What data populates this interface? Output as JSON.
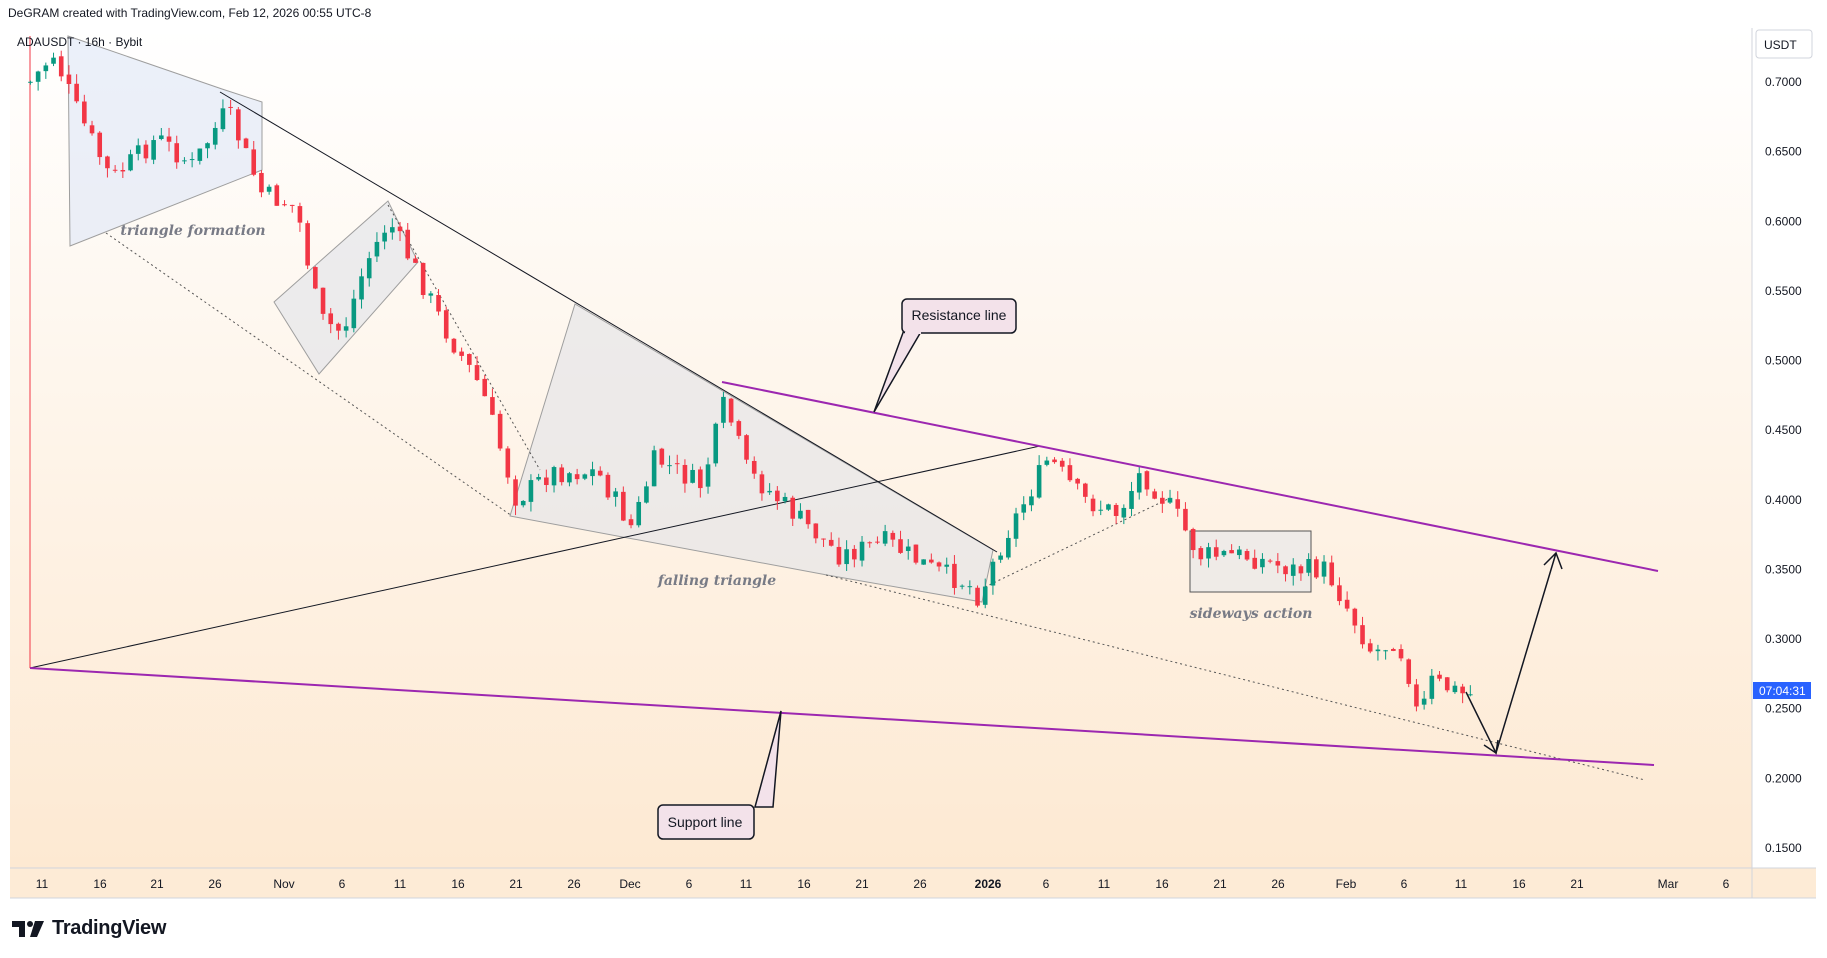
{
  "header": {
    "credit": "DeGRAM created with TradingView.com, Feb 12, 2026 00:55 UTC-8"
  },
  "symbol": {
    "label": "ADAUSDT · 16h · Bybit"
  },
  "price_axis": {
    "currency": "USDT",
    "countdown": "07:04:31",
    "ticks": [
      "0.7000",
      "0.6500",
      "0.6000",
      "0.5500",
      "0.5000",
      "0.4500",
      "0.4000",
      "0.3500",
      "0.3000",
      "0.2500",
      "0.2000",
      "0.1500"
    ]
  },
  "time_axis": {
    "ticks": [
      {
        "label": "11",
        "bold": false
      },
      {
        "label": "16",
        "bold": false
      },
      {
        "label": "21",
        "bold": false
      },
      {
        "label": "26",
        "bold": false
      },
      {
        "label": "Nov",
        "bold": false
      },
      {
        "label": "6",
        "bold": false
      },
      {
        "label": "11",
        "bold": false
      },
      {
        "label": "16",
        "bold": false
      },
      {
        "label": "21",
        "bold": false
      },
      {
        "label": "26",
        "bold": false
      },
      {
        "label": "Dec",
        "bold": false
      },
      {
        "label": "6",
        "bold": false
      },
      {
        "label": "11",
        "bold": false
      },
      {
        "label": "16",
        "bold": false
      },
      {
        "label": "21",
        "bold": false
      },
      {
        "label": "26",
        "bold": false
      },
      {
        "label": "2026",
        "bold": true
      },
      {
        "label": "6",
        "bold": false
      },
      {
        "label": "11",
        "bold": false
      },
      {
        "label": "16",
        "bold": false
      },
      {
        "label": "21",
        "bold": false
      },
      {
        "label": "26",
        "bold": false
      },
      {
        "label": "Feb",
        "bold": false
      },
      {
        "label": "6",
        "bold": false
      },
      {
        "label": "11",
        "bold": false
      },
      {
        "label": "16",
        "bold": false
      },
      {
        "label": "21",
        "bold": false
      },
      {
        "label": "Mar",
        "bold": false
      },
      {
        "label": "6",
        "bold": false
      }
    ]
  },
  "annotations": {
    "resistance": "Resistance line",
    "support": "Support line",
    "triangle_formation": "triangle formation",
    "falling_triangle": "falling triangle",
    "sideways": "sideways action"
  },
  "colors": {
    "up": "#089981",
    "down": "#f23645",
    "trendline": "#9c27b0",
    "drawing": "#131722",
    "countdown_bg": "#2962ff"
  },
  "logo": {
    "text": "TradingView"
  },
  "chart_data": {
    "type": "candlestick",
    "symbol": "ADAUSDT",
    "timeframe": "16h",
    "exchange": "Bybit",
    "ylim": [
      0.12,
      0.76
    ],
    "close_path": [
      {
        "date": "Oct 10",
        "price": 0.7
      },
      {
        "date": "Oct 12",
        "price": 0.72
      },
      {
        "date": "Oct 14",
        "price": 0.68
      },
      {
        "date": "Oct 17",
        "price": 0.63
      },
      {
        "date": "Oct 21",
        "price": 0.66
      },
      {
        "date": "Oct 24",
        "price": 0.64
      },
      {
        "date": "Oct 27",
        "price": 0.68
      },
      {
        "date": "Oct 30",
        "price": 0.62
      },
      {
        "date": "Nov 2",
        "price": 0.61
      },
      {
        "date": "Nov 4",
        "price": 0.53
      },
      {
        "date": "Nov 6",
        "price": 0.52
      },
      {
        "date": "Nov 8",
        "price": 0.57
      },
      {
        "date": "Nov 10",
        "price": 0.6
      },
      {
        "date": "Nov 12",
        "price": 0.57
      },
      {
        "date": "Nov 15",
        "price": 0.52
      },
      {
        "date": "Nov 18",
        "price": 0.48
      },
      {
        "date": "Nov 21",
        "price": 0.4
      },
      {
        "date": "Nov 24",
        "price": 0.42
      },
      {
        "date": "Nov 28",
        "price": 0.42
      },
      {
        "date": "Dec 1",
        "price": 0.38
      },
      {
        "date": "Dec 3",
        "price": 0.43
      },
      {
        "date": "Dec 7",
        "price": 0.41
      },
      {
        "date": "Dec 9",
        "price": 0.47
      },
      {
        "date": "Dec 11",
        "price": 0.42
      },
      {
        "date": "Dec 15",
        "price": 0.39
      },
      {
        "date": "Dec 19",
        "price": 0.36
      },
      {
        "date": "Dec 23",
        "price": 0.37
      },
      {
        "date": "Dec 27",
        "price": 0.35
      },
      {
        "date": "Dec 30",
        "price": 0.34
      },
      {
        "date": "Dec 31",
        "price": 0.33
      },
      {
        "date": "Jan 2",
        "price": 0.37
      },
      {
        "date": "Jan 4",
        "price": 0.4
      },
      {
        "date": "Jan 6",
        "price": 0.43
      },
      {
        "date": "Jan 9",
        "price": 0.4
      },
      {
        "date": "Jan 12",
        "price": 0.39
      },
      {
        "date": "Jan 14",
        "price": 0.42
      },
      {
        "date": "Jan 17",
        "price": 0.39
      },
      {
        "date": "Jan 19",
        "price": 0.36
      },
      {
        "date": "Jan 23",
        "price": 0.36
      },
      {
        "date": "Jan 27",
        "price": 0.35
      },
      {
        "date": "Jan 30",
        "price": 0.35
      },
      {
        "date": "Feb 1",
        "price": 0.32
      },
      {
        "date": "Feb 3",
        "price": 0.29
      },
      {
        "date": "Feb 5",
        "price": 0.3
      },
      {
        "date": "Feb 6",
        "price": 0.28
      },
      {
        "date": "Feb 7",
        "price": 0.24
      },
      {
        "date": "Feb 8",
        "price": 0.27
      },
      {
        "date": "Feb 11",
        "price": 0.26
      },
      {
        "date": "Feb 12",
        "price": 0.26
      }
    ],
    "trendlines": [
      {
        "name": "Resistance line",
        "color": "purple",
        "from": {
          "date": "Dec 9",
          "price": 0.485
        },
        "to": {
          "date": "Feb 28",
          "price": 0.35
        }
      },
      {
        "name": "Support line",
        "color": "purple",
        "from": {
          "date": "Oct 10",
          "price": 0.28
        },
        "to": {
          "date": "Feb 28",
          "price": 0.21
        }
      }
    ],
    "projection": [
      {
        "date": "Feb 12",
        "price": 0.26
      },
      {
        "date": "Feb 14",
        "price": 0.22
      },
      {
        "date": "Feb 18",
        "price": 0.365
      }
    ],
    "legend": "none"
  }
}
